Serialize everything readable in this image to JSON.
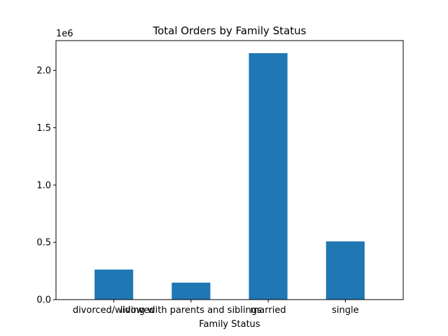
{
  "chart_data": {
    "type": "bar",
    "title": "Total Orders by Family Status",
    "xlabel": "Family Status",
    "ylabel": "",
    "scale_label": "1e6",
    "categories": [
      "divorced/widowed",
      "living with parents and siblings",
      "married",
      "single"
    ],
    "values": [
      262000,
      148000,
      2150000,
      508000
    ],
    "ylim": [
      0,
      2260000
    ],
    "yticks": [
      0.0,
      0.5,
      1.0,
      1.5,
      2.0
    ],
    "ytick_labels": [
      "0.0",
      "0.5",
      "1.0",
      "1.5",
      "2.0"
    ],
    "tick_multiplier": 1000000,
    "bar_color": "#1f77b4",
    "grid": false,
    "legend": false
  }
}
